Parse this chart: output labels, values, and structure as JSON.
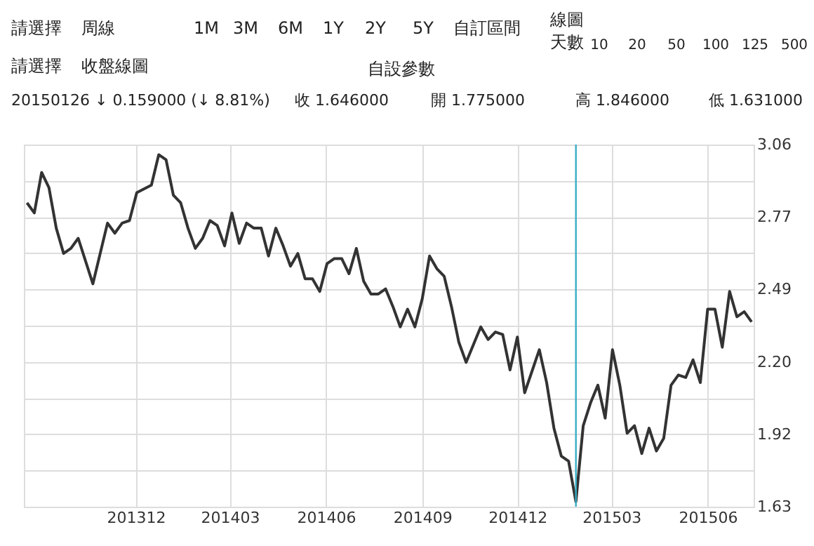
{
  "chart_data": {
    "type": "line",
    "x": [
      "2013-08-19",
      "2013-08-26",
      "2013-09-02",
      "2013-09-09",
      "2013-09-16",
      "2013-09-23",
      "2013-09-30",
      "2013-10-07",
      "2013-10-21",
      "2013-11-04",
      "2013-11-11",
      "2013-11-18",
      "2013-11-25",
      "2013-12-02",
      "2013-12-16",
      "2013-12-23",
      "2013-12-30",
      "2014-01-06",
      "2014-01-13",
      "2014-01-20",
      "2014-01-27",
      "2014-02-03",
      "2014-02-10",
      "2014-02-17",
      "2014-02-24",
      "2014-03-03",
      "2014-03-10",
      "2014-03-17",
      "2014-03-24",
      "2014-03-31",
      "2014-04-07",
      "2014-04-14",
      "2014-04-21",
      "2014-04-28",
      "2014-05-05",
      "2014-05-12",
      "2014-05-19",
      "2014-05-26",
      "2014-06-02",
      "2014-06-09",
      "2014-06-16",
      "2014-06-23",
      "2014-06-30",
      "2014-07-07",
      "2014-07-14",
      "2014-07-21",
      "2014-07-28",
      "2014-08-04",
      "2014-08-11",
      "2014-08-18",
      "2014-08-25",
      "2014-09-01",
      "2014-09-08",
      "2014-09-15",
      "2014-09-22",
      "2014-09-29",
      "2014-10-06",
      "2014-10-13",
      "2014-10-20",
      "2014-10-27",
      "2014-11-03",
      "2014-11-10",
      "2014-11-17",
      "2014-11-24",
      "2014-12-01",
      "2014-12-08",
      "2014-12-22",
      "2014-12-29",
      "2015-01-05",
      "2015-01-12",
      "2015-01-19",
      "2015-01-26",
      "2015-02-02",
      "2015-02-09",
      "2015-02-16",
      "2015-02-23",
      "2015-03-02",
      "2015-03-09",
      "2015-03-16",
      "2015-03-23",
      "2015-03-30",
      "2015-04-06",
      "2015-04-13",
      "2015-04-20",
      "2015-04-27",
      "2015-05-04",
      "2015-05-11",
      "2015-05-18",
      "2015-05-25",
      "2015-06-01",
      "2015-06-08",
      "2015-06-15",
      "2015-06-22",
      "2015-06-29",
      "2015-07-06",
      "2015-07-13"
    ],
    "series": [
      {
        "color": "#333333",
        "values": [
          2.83,
          2.79,
          2.95,
          2.89,
          2.73,
          2.63,
          2.65,
          2.69,
          2.51,
          2.75,
          2.71,
          2.75,
          2.76,
          2.87,
          2.9,
          3.02,
          3.0,
          2.86,
          2.83,
          2.73,
          2.65,
          2.69,
          2.76,
          2.74,
          2.66,
          2.79,
          2.67,
          2.75,
          2.73,
          2.73,
          2.62,
          2.73,
          2.66,
          2.58,
          2.63,
          2.53,
          2.53,
          2.48,
          2.59,
          2.61,
          2.61,
          2.55,
          2.65,
          2.52,
          2.47,
          2.47,
          2.49,
          2.42,
          2.34,
          2.41,
          2.34,
          2.45,
          2.62,
          2.57,
          2.54,
          2.42,
          2.28,
          2.2,
          2.27,
          2.34,
          2.29,
          2.32,
          2.31,
          2.17,
          2.3,
          2.08,
          2.25,
          2.12,
          1.94,
          1.83,
          1.81,
          1.65,
          1.95,
          2.04,
          2.11,
          1.98,
          2.25,
          2.11,
          1.92,
          1.95,
          1.84,
          1.94,
          1.85,
          1.9,
          2.11,
          2.15,
          2.14,
          2.21,
          2.12,
          2.41,
          2.41,
          2.26,
          2.48,
          2.38,
          2.4,
          2.36
        ]
      }
    ],
    "xlim": [
      "2013-08-16",
      "2015-07-15"
    ],
    "xticks": [
      {
        "value": "2013-12-01",
        "label": "201312"
      },
      {
        "value": "2014-03-01",
        "label": "201403"
      },
      {
        "value": "2014-06-01",
        "label": "201406"
      },
      {
        "value": "2014-09-01",
        "label": "201409"
      },
      {
        "value": "2014-12-01",
        "label": "201412"
      },
      {
        "value": "2015-03-01",
        "label": "201503"
      },
      {
        "value": "2015-06-01",
        "label": "201506"
      }
    ],
    "ylim": [
      1.63,
      3.06
    ],
    "yticks": [
      1.63,
      {
        "value": 1.773,
        "label": null
      },
      {
        "value": 1.916,
        "label": "1.92"
      },
      {
        "value": 2.059,
        "label": null
      },
      {
        "value": 2.202,
        "label": "2.20"
      },
      {
        "value": 2.345,
        "label": null
      },
      {
        "value": 2.488,
        "label": "2.49"
      },
      {
        "value": 2.631,
        "label": null
      },
      {
        "value": 2.774,
        "label": "2.77"
      },
      {
        "value": 2.917,
        "label": null
      },
      3.06
    ],
    "grid": true,
    "ref_lines": [
      {
        "axis": "x",
        "value": "2015-01-26",
        "color": "#3aaec6"
      }
    ],
    "annotations": [
      "請選擇",
      "周線",
      "1M",
      "3M",
      "6M",
      "1Y",
      "2Y",
      "5Y",
      "自訂區間",
      "線圖",
      "天數",
      "10",
      "20",
      "50",
      "100",
      "125",
      "500",
      "請選擇",
      "收盤線圖",
      "自設參數",
      "20150126 ↓ 0.159000 (↓ 8.81%)",
      "收 1.646000",
      "開 1.775000",
      "高 1.846000",
      "低 1.631000"
    ]
  }
}
